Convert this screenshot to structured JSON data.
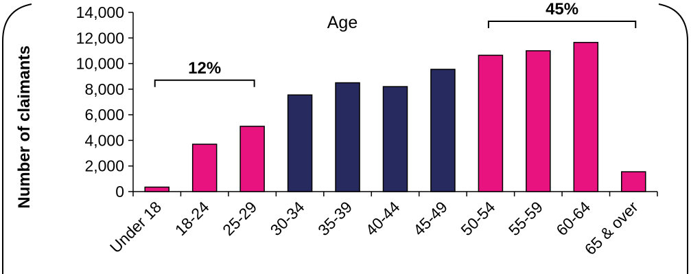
{
  "chart_data": {
    "type": "bar",
    "title": "Age",
    "xlabel": "",
    "ylabel": "Number of claimants",
    "ylim": [
      0,
      14000
    ],
    "yticks": [
      0,
      2000,
      4000,
      6000,
      8000,
      10000,
      12000,
      14000
    ],
    "ytick_labels": [
      "0",
      "2,000",
      "4,000",
      "6,000",
      "8,000",
      "10,000",
      "12,000",
      "14,000"
    ],
    "categories": [
      "Under 18",
      "18-24",
      "25-29",
      "30-34",
      "35-39",
      "40-44",
      "45-49",
      "50-54",
      "55-59",
      "60-64",
      "65 & over"
    ],
    "values": [
      350,
      3700,
      5100,
      7550,
      8500,
      8200,
      9550,
      10650,
      11000,
      11650,
      1550
    ],
    "bar_groups": [
      "young",
      "young",
      "young",
      "middle",
      "middle",
      "middle",
      "middle",
      "older",
      "older",
      "older",
      "older"
    ],
    "colors": {
      "young": "#e8137f",
      "middle": "#262a5e",
      "older": "#e8137f"
    },
    "grid": false,
    "annotations": [
      {
        "text": "12%",
        "from_category": "Under 18",
        "to_category": "25-29",
        "y": 8700
      },
      {
        "text": "45%",
        "from_category": "50-54",
        "to_category": "65 & over",
        "y": 13300
      }
    ]
  }
}
